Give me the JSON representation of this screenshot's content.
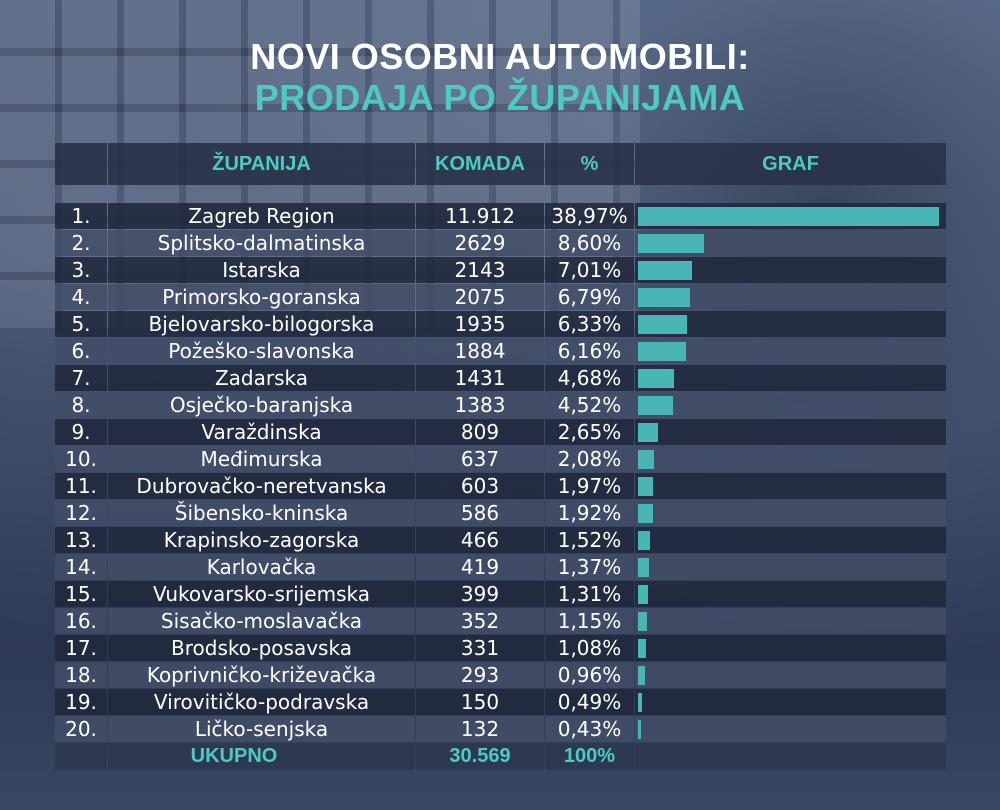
{
  "title_line1": "NOVI OSOBNI AUTOMOBILI:",
  "title_line2": "PRODAJA PO ŽUPANIJAMA",
  "headers": {
    "rank": "",
    "county": "ŽUPANIJA",
    "qty": "KOMADA",
    "pct": "%",
    "graph": "GRAF"
  },
  "total": {
    "label": "UKUPNO",
    "qty": "30.569",
    "pct": "100%"
  },
  "colors": {
    "accent": "#4ec9c4",
    "bar": "#4ab5b5",
    "row_dark": "#20283c",
    "row_light": "#424e68"
  },
  "chart_data": {
    "type": "table",
    "title": "NOVI OSOBNI AUTOMOBILI: PRODAJA PO ŽUPANIJAMA",
    "columns": [
      "",
      "ŽUPANIJA",
      "KOMADA",
      "%",
      "GRAF"
    ],
    "rows": [
      {
        "rank": "1.",
        "name": "Zagreb Region",
        "qty": "11.912",
        "pct": "38,97%",
        "share": 38.97
      },
      {
        "rank": "2.",
        "name": "Splitsko-dalmatinska",
        "qty": "2629",
        "pct": "8,60%",
        "share": 8.6
      },
      {
        "rank": "3.",
        "name": "Istarska",
        "qty": "2143",
        "pct": "7,01%",
        "share": 7.01
      },
      {
        "rank": "4.",
        "name": "Primorsko-goranska",
        "qty": "2075",
        "pct": "6,79%",
        "share": 6.79
      },
      {
        "rank": "5.",
        "name": "Bjelovarsko-bilogorska",
        "qty": "1935",
        "pct": "6,33%",
        "share": 6.33
      },
      {
        "rank": "6.",
        "name": "Požeško-slavonska",
        "qty": "1884",
        "pct": "6,16%",
        "share": 6.16
      },
      {
        "rank": "7.",
        "name": "Zadarska",
        "qty": "1431",
        "pct": "4,68%",
        "share": 4.68
      },
      {
        "rank": "8.",
        "name": "Osječko-baranjska",
        "qty": "1383",
        "pct": "4,52%",
        "share": 4.52
      },
      {
        "rank": "9.",
        "name": "Varaždinska",
        "qty": "809",
        "pct": "2,65%",
        "share": 2.65
      },
      {
        "rank": "10.",
        "name": "Međimurska",
        "qty": "637",
        "pct": "2,08%",
        "share": 2.08
      },
      {
        "rank": "11.",
        "name": "Dubrovačko-neretvanska",
        "qty": "603",
        "pct": "1,97%",
        "share": 1.97
      },
      {
        "rank": "12.",
        "name": "Šibensko-kninska",
        "qty": "586",
        "pct": "1,92%",
        "share": 1.92
      },
      {
        "rank": "13.",
        "name": "Krapinsko-zagorska",
        "qty": "466",
        "pct": "1,52%",
        "share": 1.52
      },
      {
        "rank": "14.",
        "name": "Karlovačka",
        "qty": "419",
        "pct": "1,37%",
        "share": 1.37
      },
      {
        "rank": "15.",
        "name": "Vukovarsko-srijemska",
        "qty": "399",
        "pct": "1,31%",
        "share": 1.31
      },
      {
        "rank": "16.",
        "name": "Sisačko-moslavačka",
        "qty": "352",
        "pct": "1,15%",
        "share": 1.15
      },
      {
        "rank": "17.",
        "name": "Brodsko-posavska",
        "qty": "331",
        "pct": "1,08%",
        "share": 1.08
      },
      {
        "rank": "18.",
        "name": "Koprivničko-križevačka",
        "qty": "293",
        "pct": "0,96%",
        "share": 0.96
      },
      {
        "rank": "19.",
        "name": "Virovitičko-podravska",
        "qty": "150",
        "pct": "0,49%",
        "share": 0.49
      },
      {
        "rank": "20.",
        "name": "Ličko-senjska",
        "qty": "132",
        "pct": "0,43%",
        "share": 0.43
      }
    ]
  }
}
